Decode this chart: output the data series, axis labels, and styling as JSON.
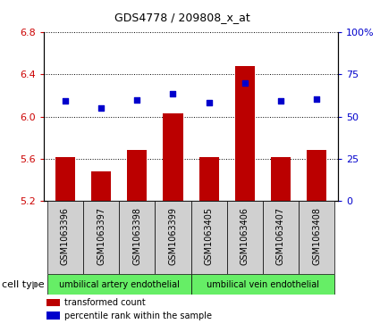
{
  "title": "GDS4778 / 209808_x_at",
  "samples": [
    "GSM1063396",
    "GSM1063397",
    "GSM1063398",
    "GSM1063399",
    "GSM1063405",
    "GSM1063406",
    "GSM1063407",
    "GSM1063408"
  ],
  "bar_values": [
    5.62,
    5.48,
    5.68,
    6.03,
    5.62,
    6.48,
    5.62,
    5.68
  ],
  "scatter_values": [
    6.15,
    6.08,
    6.16,
    6.22,
    6.13,
    6.32,
    6.15,
    6.17
  ],
  "bar_bottom": 5.2,
  "ylim_left": [
    5.2,
    6.8
  ],
  "ylim_right": [
    0,
    100
  ],
  "yticks_left": [
    5.2,
    5.6,
    6.0,
    6.4,
    6.8
  ],
  "yticks_right": [
    0,
    25,
    50,
    75,
    100
  ],
  "ytick_labels_right": [
    "0",
    "25",
    "50",
    "75",
    "100%"
  ],
  "bar_color": "#bb0000",
  "scatter_color": "#0000cc",
  "cell_type_labels": [
    "umbilical artery endothelial",
    "umbilical vein endothelial"
  ],
  "cell_type_groups": [
    4,
    4
  ],
  "cell_type_color": "#66ee66",
  "tick_label_color_left": "#cc0000",
  "tick_label_color_right": "#0000cc",
  "label_fontsize": 7,
  "tick_fontsize": 8,
  "cell_fontsize": 7,
  "legend_fontsize": 7,
  "title_fontsize": 9
}
